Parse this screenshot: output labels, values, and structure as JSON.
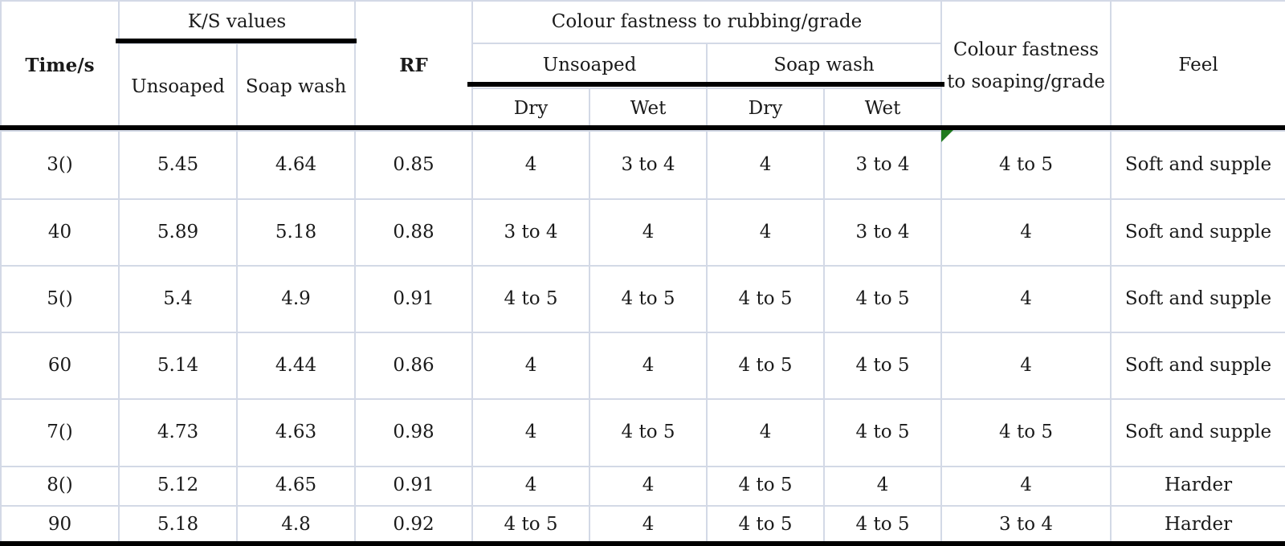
{
  "header": {
    "time": "Time/s",
    "ks_group": "K/S values",
    "ks_unsoaped": "Unsoaped",
    "ks_soap_wash": "Soap wash",
    "rf": "RF",
    "rub_group": "Colour fastness to rubbing/grade",
    "rub_unsoaped": "Unsoaped",
    "rub_soap_wash": "Soap wash",
    "dry_1": "Dry",
    "wet_1": "Wet",
    "dry_2": "Dry",
    "wet_2": "Wet",
    "soaping": "Colour fastness to soaping/grade",
    "feel": "Feel"
  },
  "rows": [
    [
      "3()",
      "5.45",
      "4.64",
      "0.85",
      "4",
      "3 to 4",
      "4",
      "3 to 4",
      "4 to 5",
      "Soft and supple"
    ],
    [
      "40",
      "5.89",
      "5.18",
      "0.88",
      "3 to 4",
      "4",
      "4",
      "3 to 4",
      "4",
      "Soft and supple"
    ],
    [
      "5()",
      "5.4",
      "4.9",
      "0.91",
      "4 to 5",
      "4 to 5",
      "4 to 5",
      "4 to 5",
      "4",
      "Soft and supple"
    ],
    [
      "60",
      "5.14",
      "4.44",
      "0.86",
      "4",
      "4",
      "4 to 5",
      "4 to 5",
      "4",
      "Soft and supple"
    ],
    [
      "7()",
      "4.73",
      "4.63",
      "0.98",
      "4",
      "4 to 5",
      "4",
      "4 to 5",
      "4 to 5",
      "Soft and supple"
    ],
    [
      "8()",
      "5.12",
      "4.65",
      "0.91",
      "4",
      "4",
      "4 to 5",
      "4",
      "4",
      "Harder"
    ],
    [
      "90",
      "5.18",
      "4.8",
      "0.92",
      "4 to 5",
      "4",
      "4 to 5",
      "4 to 5",
      "3 to 4",
      "Harder"
    ]
  ]
}
